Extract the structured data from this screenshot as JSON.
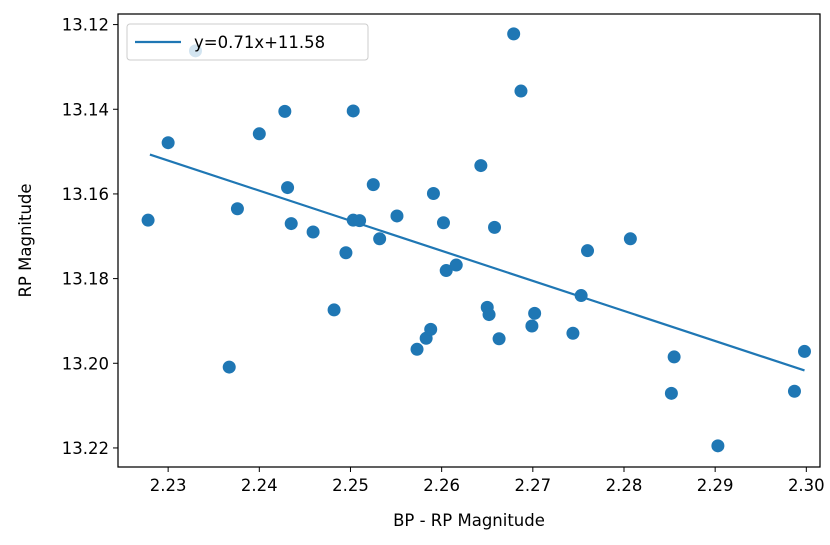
{
  "chart_data": {
    "type": "scatter",
    "title": "",
    "xlabel": "BP - RP Magnitude",
    "ylabel": "RP Magnitude",
    "xlim": [
      2.2245,
      2.3015
    ],
    "ylim": [
      13.2245,
      13.1175
    ],
    "y_inverted": true,
    "xticks": [
      "2.23",
      "2.24",
      "2.25",
      "2.26",
      "2.27",
      "2.28",
      "2.29",
      "2.30"
    ],
    "yticks": [
      "13.12",
      "13.14",
      "13.16",
      "13.18",
      "13.20",
      "13.22"
    ],
    "grid": false,
    "legend_position": "upper-left",
    "colors": {
      "series": "#1f77b4"
    },
    "series": [
      {
        "name": "y=0.71x+11.58",
        "kind": "line",
        "x": [
          2.228,
          2.2998
        ],
        "y": [
          13.1507,
          13.2017
        ]
      },
      {
        "kind": "scatter",
        "x": [
          2.2278,
          2.23,
          2.233,
          2.2367,
          2.2376,
          2.24,
          2.2428,
          2.2431,
          2.2435,
          2.2459,
          2.2482,
          2.2495,
          2.2503,
          2.2503,
          2.251,
          2.2525,
          2.2532,
          2.2551,
          2.2573,
          2.2583,
          2.2588,
          2.2591,
          2.2602,
          2.2605,
          2.2616,
          2.2643,
          2.265,
          2.2652,
          2.2658,
          2.2663,
          2.2679,
          2.2687,
          2.2699,
          2.2702,
          2.2744,
          2.2753,
          2.276,
          2.2807,
          2.2852,
          2.2855,
          2.2903,
          2.2987,
          2.2998
        ],
        "y": [
          13.1662,
          13.1479,
          13.1262,
          13.2009,
          13.1635,
          13.1458,
          13.1405,
          13.1585,
          13.167,
          13.169,
          13.1874,
          13.1739,
          13.1404,
          13.1662,
          13.1663,
          13.1578,
          13.1706,
          13.1652,
          13.1967,
          13.1941,
          13.192,
          13.1599,
          13.1668,
          13.1781,
          13.1768,
          13.1533,
          13.1868,
          13.1885,
          13.1679,
          13.1942,
          13.1222,
          13.1357,
          13.1912,
          13.1882,
          13.1929,
          13.184,
          13.1734,
          13.1706,
          13.2071,
          13.1985,
          13.2195,
          13.2066,
          13.1972
        ]
      }
    ]
  }
}
